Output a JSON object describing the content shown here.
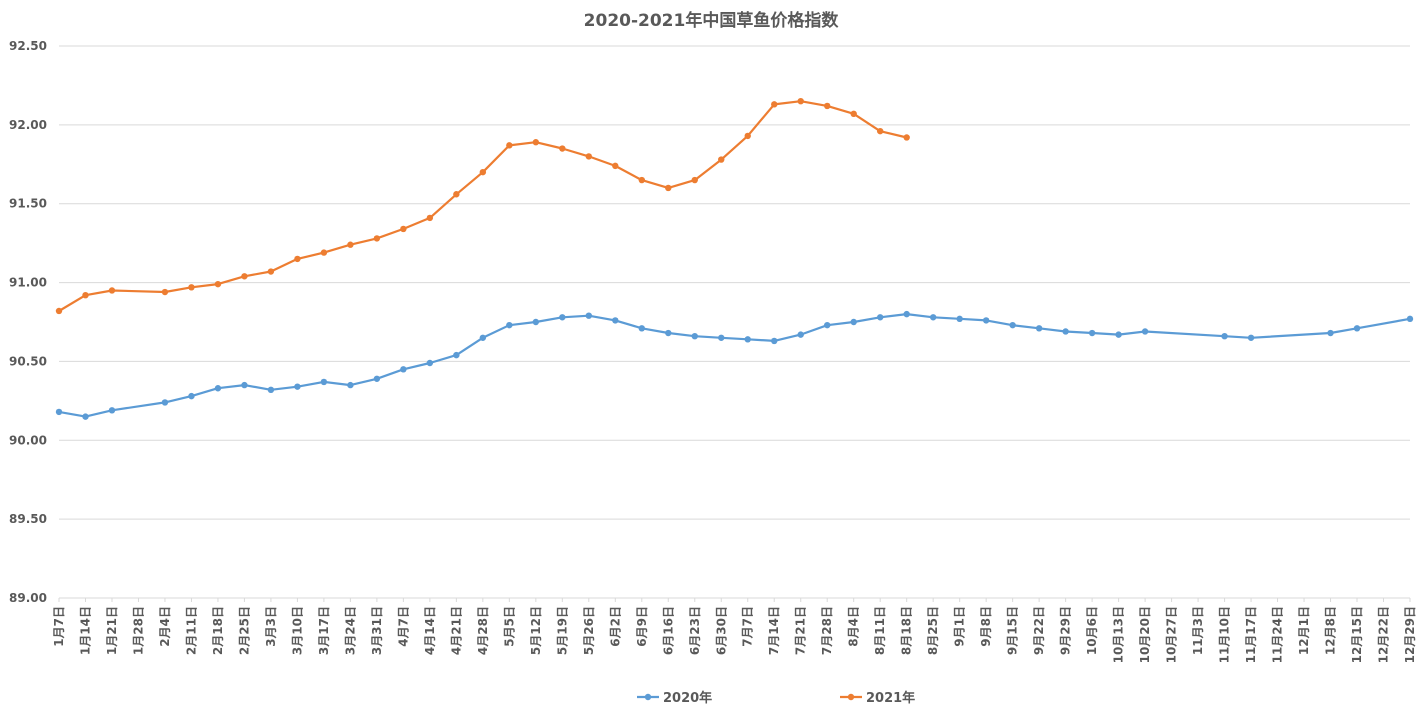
{
  "chart_data": {
    "type": "line",
    "title": "2020-2021年中国草鱼价格指数",
    "xlabel": "",
    "ylabel": "",
    "ylim": [
      89.0,
      92.5
    ],
    "yticks": [
      "92.50",
      "92.00",
      "91.50",
      "91.00",
      "90.50",
      "90.00",
      "89.50",
      "89.00"
    ],
    "ytick_values": [
      92.5,
      92.0,
      91.5,
      91.0,
      90.5,
      90.0,
      89.5,
      89.0
    ],
    "grid": true,
    "legend_position": "bottom",
    "categories": [
      "1月7日",
      "1月14日",
      "1月21日",
      "1月28日",
      "2月4日",
      "2月11日",
      "2月18日",
      "2月25日",
      "3月3日",
      "3月10日",
      "3月17日",
      "3月24日",
      "3月31日",
      "4月7日",
      "4月14日",
      "4月21日",
      "4月28日",
      "5月5日",
      "5月12日",
      "5月19日",
      "5月26日",
      "6月2日",
      "6月9日",
      "6月16日",
      "6月23日",
      "6月30日",
      "7月7日",
      "7月14日",
      "7月21日",
      "7月28日",
      "8月4日",
      "8月11日",
      "8月18日",
      "8月25日",
      "9月1日",
      "9月8日",
      "9月15日",
      "9月22日",
      "9月29日",
      "10月6日",
      "10月13日",
      "10月20日",
      "10月27日",
      "11月3日",
      "11月10日",
      "11月17日",
      "11月24日",
      "12月1日",
      "12月8日",
      "12月15日",
      "12月22日",
      "12月29日"
    ],
    "series": [
      {
        "name": "2020年",
        "color": "#5b9bd5",
        "values": [
          90.18,
          90.15,
          90.19,
          null,
          90.24,
          90.28,
          90.33,
          90.35,
          90.32,
          90.34,
          90.37,
          90.35,
          90.39,
          90.45,
          90.49,
          90.54,
          90.65,
          90.73,
          90.75,
          90.78,
          90.79,
          90.76,
          90.71,
          90.68,
          90.66,
          90.65,
          90.64,
          90.63,
          90.67,
          90.73,
          90.75,
          90.78,
          90.8,
          90.78,
          90.77,
          90.76,
          90.73,
          90.71,
          90.69,
          90.68,
          90.67,
          90.69,
          null,
          null,
          90.66,
          90.65,
          null,
          null,
          90.68,
          90.71,
          null,
          90.77
        ]
      },
      {
        "name": "2021年",
        "color": "#ed7d31",
        "values": [
          90.82,
          90.92,
          90.95,
          null,
          90.94,
          90.97,
          90.99,
          91.04,
          91.07,
          91.15,
          91.19,
          91.24,
          91.28,
          91.34,
          91.41,
          91.56,
          91.7,
          91.87,
          91.89,
          91.85,
          91.8,
          91.74,
          91.65,
          91.6,
          91.65,
          91.78,
          91.93,
          92.13,
          92.15,
          92.12,
          92.07,
          91.96,
          91.92,
          null,
          null,
          null,
          null,
          null,
          null,
          null,
          null,
          null,
          null,
          null,
          null,
          null,
          null,
          null,
          null,
          null,
          null,
          null
        ]
      }
    ]
  }
}
